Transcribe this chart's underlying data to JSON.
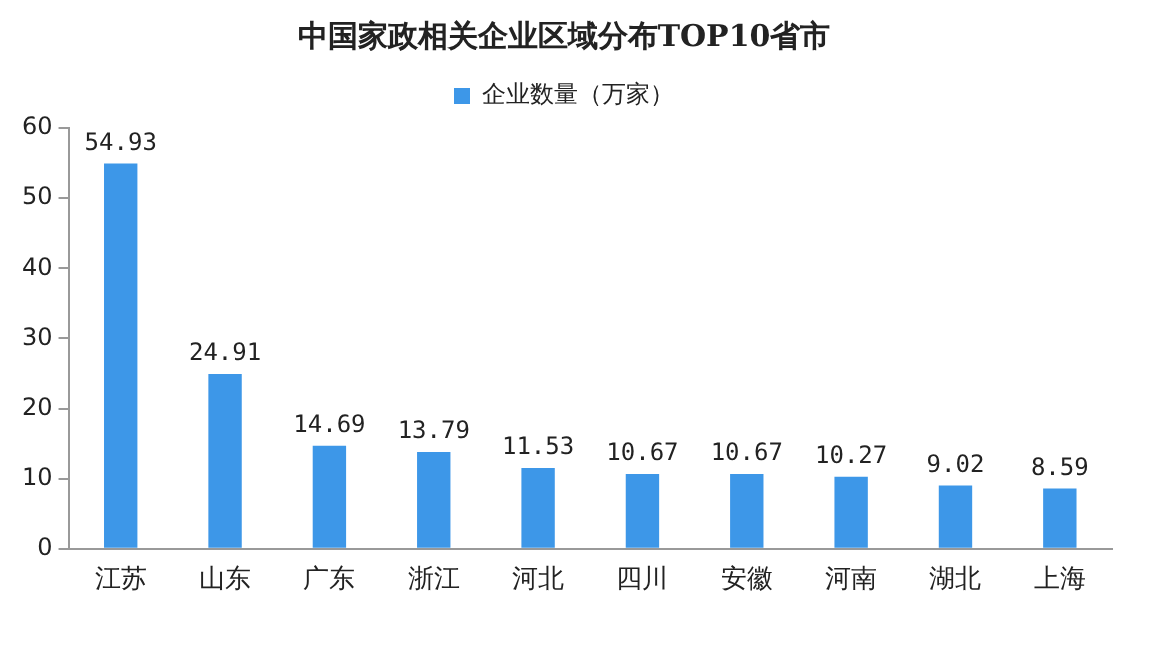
{
  "chart_data": {
    "type": "bar",
    "title": "中国家政相关企业区域分布TOP10省市",
    "categories": [
      "江苏",
      "山东",
      "广东",
      "浙江",
      "河北",
      "四川",
      "安徽",
      "河南",
      "湖北",
      "上海"
    ],
    "series": [
      {
        "name": "企业数量（万家）",
        "color": "#3d97e8",
        "values": [
          54.93,
          24.91,
          14.69,
          13.79,
          11.53,
          10.67,
          10.67,
          10.27,
          9.02,
          8.59
        ]
      }
    ],
    "ylim": [
      0,
      60
    ],
    "yticks": [
      0,
      10,
      20,
      30,
      40,
      50,
      60
    ],
    "grid": false,
    "legend": "top",
    "data_labels": true
  }
}
